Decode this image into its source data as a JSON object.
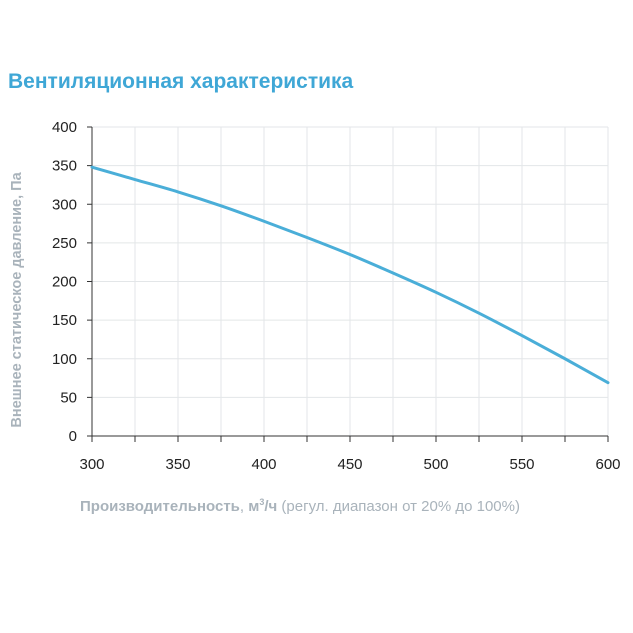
{
  "title": "Вентиляционная характеристика",
  "chart_data": {
    "type": "line",
    "title": "Вентиляционная характеристика",
    "xlabel_bold": "Производительность",
    "xlabel_sep": ", ",
    "xlabel_unit_pre": "м",
    "xlabel_unit_sup": "3",
    "xlabel_unit_post": "/ч",
    "xlabel_note": " (регул. диапазон от 20% до 100%)",
    "ylabel": "Внешнее статическое давление, Па",
    "xlim": [
      300,
      600
    ],
    "ylim": [
      0,
      400
    ],
    "xticks": [
      300,
      350,
      400,
      450,
      500,
      550,
      600
    ],
    "yticks": [
      0,
      50,
      100,
      150,
      200,
      250,
      300,
      350,
      400
    ],
    "xgrid_step": 25,
    "grid": true,
    "series": [
      {
        "color": "#4aaed8",
        "x": [
          300,
          325,
          350,
          375,
          400,
          425,
          450,
          475,
          500,
          525,
          550,
          575,
          600
        ],
        "y": [
          348,
          332,
          316,
          298,
          278,
          257,
          235,
          211,
          186,
          159,
          130,
          100,
          69
        ]
      }
    ]
  },
  "colors": {
    "title": "#3fa7d6",
    "axis_label": "#a9b3bb",
    "grid": "#e3e6e8",
    "axis": "#333333"
  }
}
